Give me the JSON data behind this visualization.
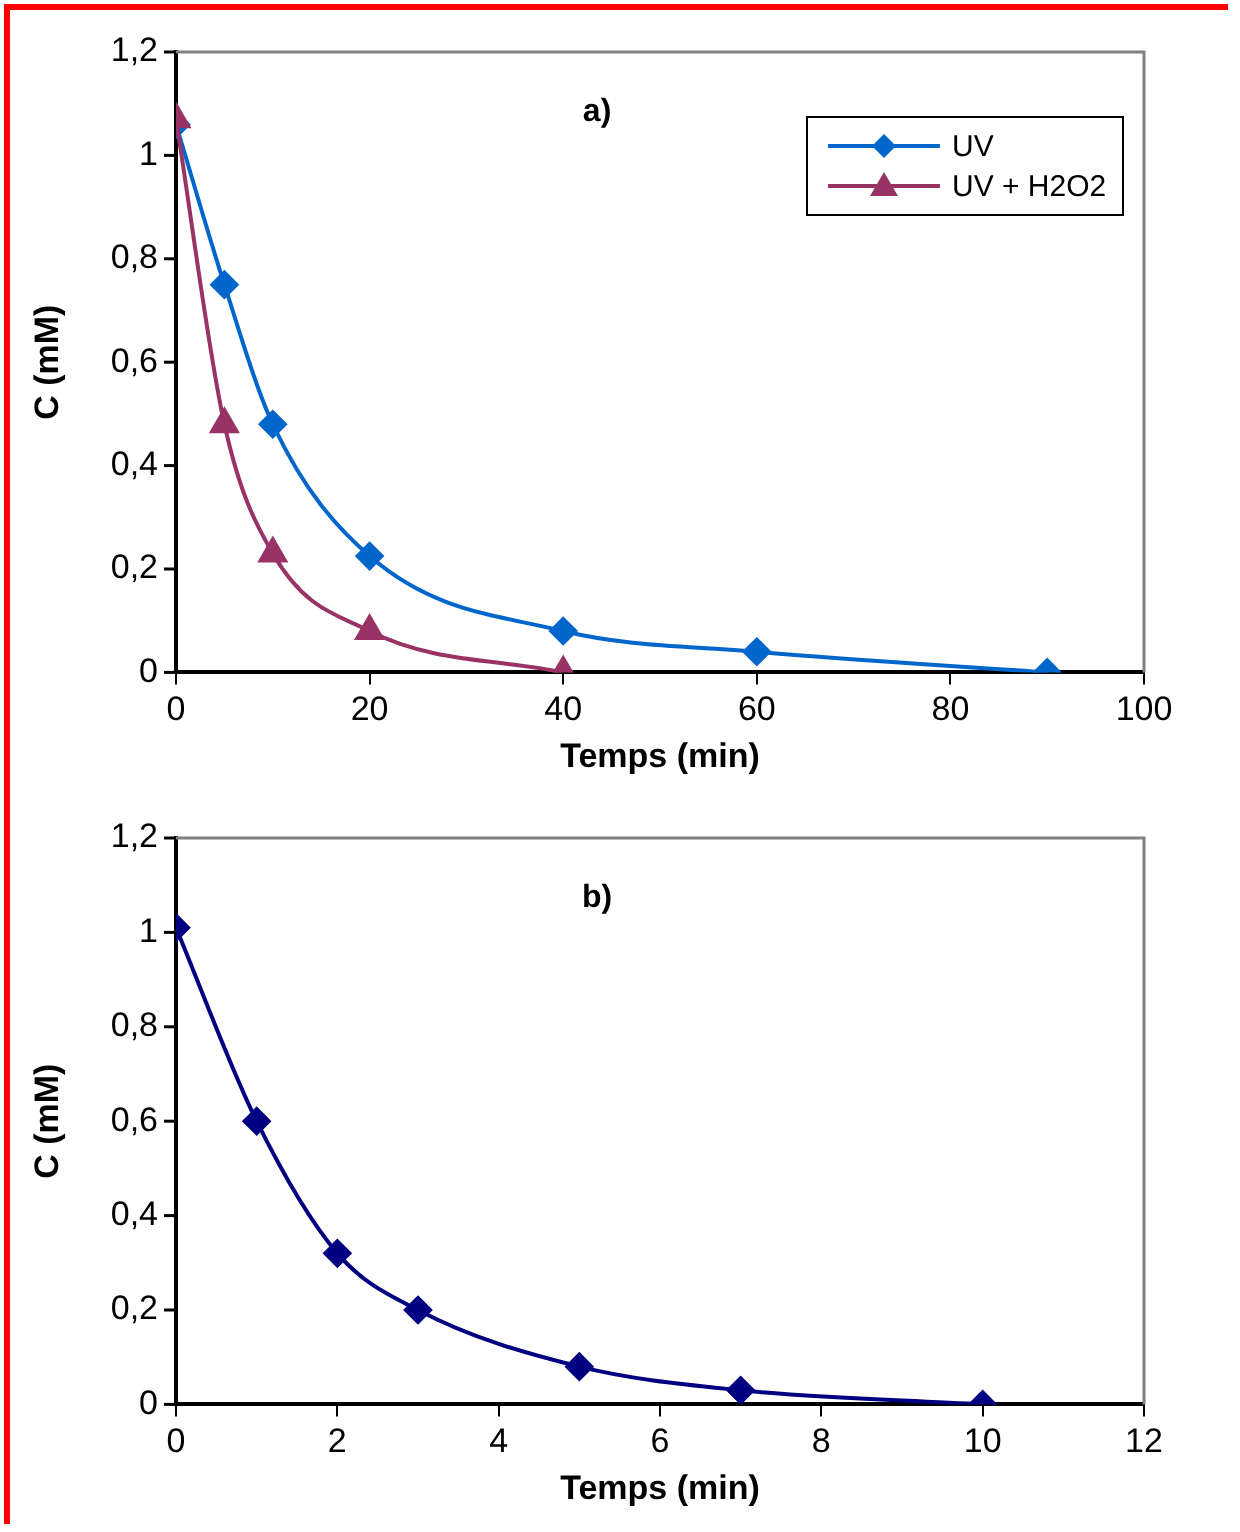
{
  "chart_data": [
    {
      "type": "line",
      "title": "a)",
      "xlabel": "Temps (min)",
      "ylabel": "C (mM)",
      "xlim": [
        0,
        100
      ],
      "xticks": [
        0,
        20,
        40,
        60,
        80,
        100
      ],
      "ylim": [
        0,
        1.2
      ],
      "yticks": [
        {
          "value": 0,
          "label": "0"
        },
        {
          "value": 0.2,
          "label": "0,2"
        },
        {
          "value": 0.4,
          "label": "0,4"
        },
        {
          "value": 0.6,
          "label": "0,6"
        },
        {
          "value": 0.8,
          "label": "0,8"
        },
        {
          "value": 1,
          "label": "1"
        },
        {
          "value": 1.2,
          "label": "1,2"
        }
      ],
      "grid": false,
      "legend": "top right",
      "series": [
        {
          "name": "UV",
          "color": "#0066cc",
          "marker": "diamond",
          "x": [
            0,
            5,
            10,
            20,
            40,
            60,
            90
          ],
          "values": [
            1.06,
            0.75,
            0.48,
            0.225,
            0.08,
            0.04,
            0
          ]
        },
        {
          "name": "UV + H2O2",
          "color": "#993366",
          "marker": "triangle",
          "x": [
            0,
            5,
            10,
            20,
            40
          ],
          "values": [
            1.07,
            0.48,
            0.23,
            0.08,
            0
          ]
        }
      ]
    },
    {
      "type": "line",
      "title": "b)",
      "xlabel": "Temps (min)",
      "ylabel": "C (mM)",
      "xlim": [
        0,
        12
      ],
      "xticks": [
        0,
        2,
        4,
        6,
        8,
        10,
        12
      ],
      "ylim": [
        0,
        1.2
      ],
      "yticks": [
        {
          "value": 0,
          "label": "0"
        },
        {
          "value": 0.2,
          "label": "0,2"
        },
        {
          "value": 0.4,
          "label": "0,4"
        },
        {
          "value": 0.6,
          "label": "0,6"
        },
        {
          "value": 0.8,
          "label": "0,8"
        },
        {
          "value": 1,
          "label": "1"
        },
        {
          "value": 1.2,
          "label": "1,2"
        }
      ],
      "grid": false,
      "series": [
        {
          "color": "#000080",
          "marker": "diamond",
          "x": [
            0,
            1,
            2,
            3,
            5,
            7,
            10
          ],
          "values": [
            1.01,
            0.6,
            0.32,
            0.2,
            0.08,
            0.03,
            0
          ]
        }
      ]
    }
  ]
}
